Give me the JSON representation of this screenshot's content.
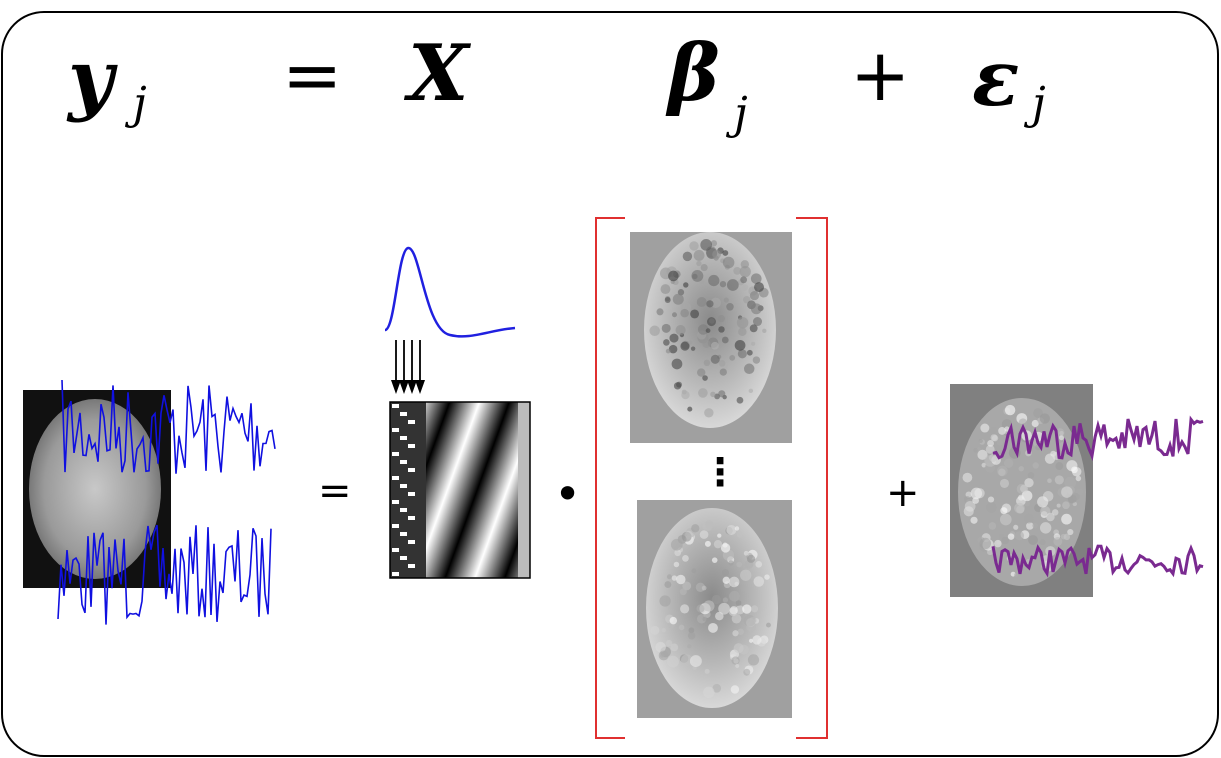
{
  "equation": {
    "terms": [
      {
        "symbol": "y",
        "subscript": "j"
      },
      {
        "symbol": "="
      },
      {
        "symbol": "X"
      },
      {
        "symbol": "β",
        "subscript": "j"
      },
      {
        "symbol": "+"
      },
      {
        "symbol": "ε",
        "subscript": "j"
      }
    ]
  },
  "illustration": {
    "operators": [
      "=",
      "•",
      "⋮",
      "+"
    ]
  }
}
